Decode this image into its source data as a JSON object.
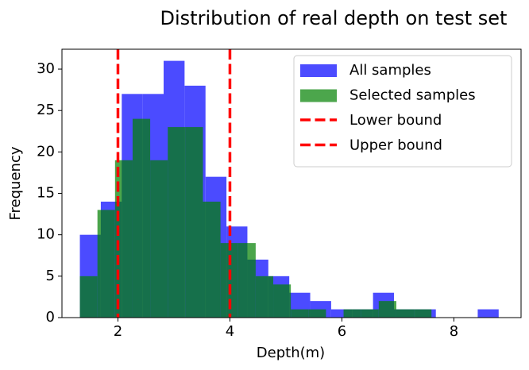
{
  "chart_data": {
    "type": "histogram",
    "title": "Distribution of real depth on test set",
    "x_label": "Depth(m)",
    "y_label": "Frequency",
    "xlim": [
      1.0,
      9.2
    ],
    "ylim": [
      0,
      32.4
    ],
    "xticks": [
      2,
      4,
      6,
      8
    ],
    "yticks": [
      0,
      5,
      10,
      15,
      20,
      25,
      30
    ],
    "legend": "upper right",
    "series": [
      {
        "name": "All samples",
        "color": "#0000ff",
        "opacity": 0.7,
        "bins": [
          1.32,
          1.694,
          2.068,
          2.442,
          2.816,
          3.19,
          3.564,
          3.938,
          4.312,
          4.686,
          5.06,
          5.434,
          5.808,
          6.182,
          6.556,
          6.93,
          7.304,
          7.678,
          8.052,
          8.426,
          8.8
        ],
        "values": [
          10,
          14,
          27,
          27,
          31,
          28,
          17,
          11,
          7,
          5,
          3,
          2,
          1,
          1,
          3,
          1,
          1,
          0,
          0,
          1
        ]
      },
      {
        "name": "Selected samples",
        "color": "#008000",
        "opacity": 0.7,
        "bins": [
          1.32,
          1.634,
          1.948,
          2.262,
          2.576,
          2.89,
          3.204,
          3.518,
          3.832,
          4.146,
          4.46,
          4.774,
          5.088,
          5.402,
          5.716,
          6.03,
          6.344,
          6.658,
          6.972,
          7.286,
          7.6
        ],
        "values": [
          5,
          13,
          19,
          24,
          19,
          23,
          23,
          14,
          9,
          9,
          5,
          4,
          1,
          1,
          0,
          1,
          1,
          2,
          1,
          1
        ]
      }
    ],
    "vlines": [
      {
        "name": "Lower bound",
        "x": 2,
        "color": "#ff0000"
      },
      {
        "name": "Upper bound",
        "x": 4,
        "color": "#ff0000"
      }
    ]
  }
}
